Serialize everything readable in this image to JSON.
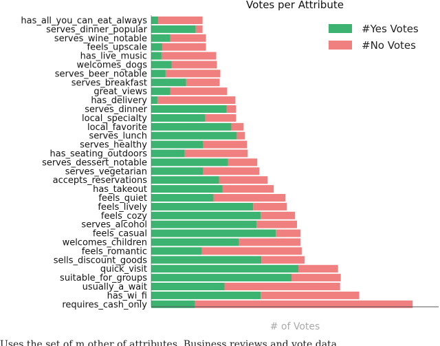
{
  "chart_data": {
    "type": "bar",
    "stacked": true,
    "orientation": "horizontal",
    "title": "Votes per Attribute",
    "xlabel": "# of Votes",
    "ylabel": "",
    "legend_position": "top-right",
    "grid": false,
    "categories": [
      "has_all_you_can_eat_always",
      "serves_dinner_popular",
      "serves_wine_notable",
      "feels_upscale",
      "has_live_music",
      "welcomes_dogs",
      "serves_beer_notable",
      "serves_breakfast",
      "great_views",
      "has_delivery",
      "serves_dinner",
      "local_specialty",
      "local_favorite",
      "serves_lunch",
      "serves_healthy",
      "has_seating_outdoors",
      "serves_dessert_notable",
      "serves_vegetarian",
      "accepts_reservations",
      "has_takeout",
      "feels_quiet",
      "feels_lively",
      "feels_cozy",
      "serves_alcohol",
      "feels_casual",
      "welcomes_children",
      "feels_romantic",
      "sells_discount_goods",
      "quick_visit",
      "suitable_for_groups",
      "usually_a_wait",
      "has_wi_fi",
      "requires_cash_only"
    ],
    "series": [
      {
        "name": "#Yes Votes",
        "color": "#3cb371",
        "values": [
          10,
          65,
          28,
          16,
          15,
          30,
          21,
          51,
          28,
          9,
          110,
          79,
          117,
          125,
          76,
          49,
          112,
          76,
          99,
          104,
          91,
          149,
          160,
          154,
          182,
          128,
          74,
          161,
          215,
          205,
          107,
          160,
          64
        ]
      },
      {
        "name": "#No Votes",
        "color": "#f08080",
        "values": [
          65,
          10,
          52,
          64,
          80,
          66,
          80,
          49,
          83,
          114,
          14,
          45,
          18,
          12,
          64,
          92,
          43,
          82,
          71,
          75,
          105,
          49,
          50,
          59,
          36,
          90,
          146,
          63,
          58,
          72,
          169,
          144,
          318
        ]
      }
    ],
    "xlim": [
      0,
      420
    ]
  },
  "caption": "Uses the set of m other of attributes. Business reviews and vote data"
}
